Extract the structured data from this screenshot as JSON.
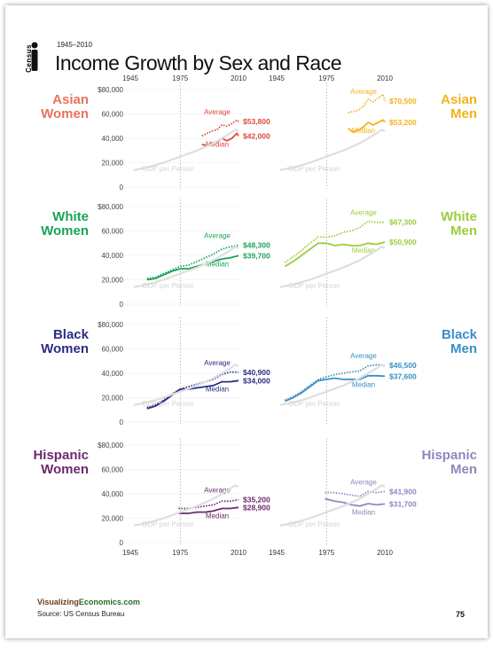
{
  "header": {
    "agency": "Census",
    "years": "1945–2010",
    "title": "Income Growth by Sex and Race"
  },
  "footer": {
    "brand_part1": "Visualizing",
    "brand_part2": "Economics.com",
    "source": "Source: US Census Bureau",
    "page_number": "75"
  },
  "colors": {
    "asian_women": "#e8735b",
    "asian_women_series": "#e0483a",
    "asian_men": "#f3b21a",
    "white_women": "#1aa358",
    "white_men": "#9ccc3c",
    "black_women": "#2b2e84",
    "black_men": "#3b8fc6",
    "hispanic_women": "#6c2a6e",
    "hispanic_men": "#8c88c0",
    "gdp": "#dedede"
  },
  "chart_data": [
    {
      "type": "line",
      "group": "Asian Women",
      "title_line1": "Asian",
      "title_line2": "Women",
      "color": "#e8735b",
      "series_color": "#e0483a",
      "ylim": [
        0,
        80000
      ],
      "x_ticks": [
        1945,
        1975,
        2010
      ],
      "y_ticks": [
        "0",
        "20,000",
        "40,000",
        "60,000",
        "$80,000"
      ],
      "show_y_axis": true,
      "series": [
        {
          "name": "Average",
          "label": "$53,800",
          "x": [
            1988,
            1991,
            1994,
            1997,
            2000,
            2003,
            2006,
            2009,
            2010
          ],
          "y": [
            42000,
            44000,
            46000,
            47000,
            51000,
            50000,
            52000,
            55000,
            53800
          ]
        },
        {
          "name": "Median",
          "label": "$42,000",
          "x": [
            1988,
            1991,
            1994,
            1997,
            2000,
            2003,
            2006,
            2009,
            2010
          ],
          "y": [
            35000,
            34000,
            36000,
            37000,
            40000,
            38000,
            40000,
            44000,
            42000
          ]
        },
        {
          "name": "GDP per Person",
          "label": "GDP per Person",
          "x": [
            1947,
            1955,
            1965,
            1975,
            1985,
            1995,
            2005,
            2008,
            2010
          ],
          "y": [
            14000,
            16000,
            20000,
            25000,
            30000,
            36000,
            44000,
            47000,
            46000
          ]
        }
      ]
    },
    {
      "type": "line",
      "group": "Asian Men",
      "title_line1": "Asian",
      "title_line2": "Men",
      "color": "#f3b21a",
      "series_color": "#f3b21a",
      "ylim": [
        0,
        80000
      ],
      "x_ticks": [
        1945,
        1975,
        2010
      ],
      "y_ticks": [],
      "show_y_axis": false,
      "series": [
        {
          "name": "Average",
          "label": "$70,500",
          "x": [
            1988,
            1991,
            1994,
            1997,
            2000,
            2003,
            2006,
            2009,
            2010
          ],
          "y": [
            61000,
            62000,
            63000,
            66000,
            72000,
            70000,
            73000,
            76000,
            70500
          ]
        },
        {
          "name": "Median",
          "label": "$53,200",
          "x": [
            1988,
            1991,
            1994,
            1997,
            2000,
            2003,
            2006,
            2009,
            2010
          ],
          "y": [
            48000,
            45000,
            47000,
            49000,
            53000,
            51000,
            53000,
            55000,
            53200
          ]
        },
        {
          "name": "GDP per Person",
          "label": "GDP per Person",
          "x": [
            1947,
            1955,
            1965,
            1975,
            1985,
            1995,
            2005,
            2008,
            2010
          ],
          "y": [
            14000,
            16000,
            20000,
            25000,
            30000,
            36000,
            44000,
            47000,
            46000
          ]
        }
      ]
    },
    {
      "type": "line",
      "group": "White Women",
      "title_line1": "White",
      "title_line2": "Women",
      "color": "#1aa358",
      "series_color": "#1aa358",
      "ylim": [
        0,
        80000
      ],
      "x_ticks": [
        1945,
        1975,
        2010
      ],
      "y_ticks": [
        "0",
        "20,000",
        "40,000",
        "60,000",
        "$80,000"
      ],
      "show_y_axis": true,
      "series": [
        {
          "name": "Average",
          "label": "$48,300",
          "x": [
            1955,
            1960,
            1965,
            1970,
            1975,
            1980,
            1985,
            1990,
            1995,
            2000,
            2005,
            2010
          ],
          "y": [
            21000,
            22000,
            25000,
            28000,
            31000,
            32000,
            35000,
            38000,
            41000,
            45000,
            47000,
            48300
          ]
        },
        {
          "name": "Median",
          "label": "$39,700",
          "x": [
            1955,
            1960,
            1965,
            1970,
            1975,
            1980,
            1985,
            1990,
            1995,
            2000,
            2005,
            2010
          ],
          "y": [
            20000,
            21000,
            24000,
            27000,
            29000,
            29000,
            31000,
            33000,
            35000,
            37000,
            38000,
            39700
          ]
        },
        {
          "name": "GDP per Person",
          "label": "GDP per Person",
          "x": [
            1947,
            1955,
            1965,
            1975,
            1985,
            1995,
            2005,
            2008,
            2010
          ],
          "y": [
            14000,
            16000,
            20000,
            25000,
            30000,
            36000,
            44000,
            47000,
            46000
          ]
        }
      ]
    },
    {
      "type": "line",
      "group": "White Men",
      "title_line1": "White",
      "title_line2": "Men",
      "color": "#9ccc3c",
      "series_color": "#9ccc3c",
      "ylim": [
        0,
        80000
      ],
      "x_ticks": [
        1945,
        1975,
        2010
      ],
      "y_ticks": [],
      "show_y_axis": false,
      "series": [
        {
          "name": "Average",
          "label": "$67,300",
          "x": [
            1950,
            1955,
            1960,
            1965,
            1970,
            1975,
            1980,
            1985,
            1990,
            1995,
            2000,
            2005,
            2010
          ],
          "y": [
            34000,
            39000,
            44000,
            50000,
            55000,
            55000,
            56000,
            59000,
            60000,
            63000,
            68000,
            67000,
            67300
          ]
        },
        {
          "name": "Median",
          "label": "$50,900",
          "x": [
            1950,
            1955,
            1960,
            1965,
            1970,
            1975,
            1980,
            1985,
            1990,
            1995,
            2000,
            2005,
            2010
          ],
          "y": [
            31000,
            35000,
            40000,
            45000,
            50000,
            50000,
            48000,
            49000,
            48000,
            48000,
            50000,
            49000,
            50900
          ]
        },
        {
          "name": "GDP per Person",
          "label": "GDP per Person",
          "x": [
            1947,
            1955,
            1965,
            1975,
            1985,
            1995,
            2005,
            2008,
            2010
          ],
          "y": [
            14000,
            16000,
            20000,
            25000,
            30000,
            36000,
            44000,
            47000,
            46000
          ]
        }
      ]
    },
    {
      "type": "line",
      "group": "Black Women",
      "title_line1": "Black",
      "title_line2": "Women",
      "color": "#2b2e84",
      "series_color": "#2b2e84",
      "ylim": [
        0,
        80000
      ],
      "x_ticks": [
        1945,
        1975,
        2010
      ],
      "y_ticks": [
        "0",
        "20,000",
        "40,000",
        "60,000",
        "$80,000"
      ],
      "show_y_axis": true,
      "series": [
        {
          "name": "Average",
          "label": "$40,900",
          "x": [
            1955,
            1960,
            1965,
            1970,
            1975,
            1980,
            1985,
            1990,
            1995,
            2000,
            2005,
            2010
          ],
          "y": [
            12000,
            14000,
            18000,
            23000,
            27000,
            29000,
            31000,
            33000,
            35000,
            39000,
            41000,
            40900
          ]
        },
        {
          "name": "Median",
          "label": "$34,000",
          "x": [
            1955,
            1960,
            1965,
            1970,
            1975,
            1980,
            1985,
            1990,
            1995,
            2000,
            2005,
            2010
          ],
          "y": [
            11000,
            13000,
            17000,
            22000,
            27000,
            27000,
            28000,
            29000,
            30000,
            33000,
            33000,
            34000
          ]
        },
        {
          "name": "GDP per Person",
          "label": "GDP per Person",
          "x": [
            1947,
            1955,
            1965,
            1975,
            1985,
            1995,
            2005,
            2008,
            2010
          ],
          "y": [
            14000,
            16000,
            20000,
            25000,
            30000,
            36000,
            44000,
            47000,
            46000
          ]
        }
      ]
    },
    {
      "type": "line",
      "group": "Black Men",
      "title_line1": "Black",
      "title_line2": "Men",
      "color": "#3b8fc6",
      "series_color": "#3b8fc6",
      "ylim": [
        0,
        80000
      ],
      "x_ticks": [
        1945,
        1975,
        2010
      ],
      "y_ticks": [],
      "show_y_axis": false,
      "series": [
        {
          "name": "Average",
          "label": "$46,500",
          "x": [
            1950,
            1955,
            1960,
            1965,
            1970,
            1975,
            1980,
            1985,
            1990,
            1995,
            2000,
            2005,
            2010
          ],
          "y": [
            18000,
            21000,
            25000,
            30000,
            35000,
            37000,
            39000,
            40000,
            41000,
            42000,
            46000,
            47000,
            46500
          ]
        },
        {
          "name": "Median",
          "label": "$37,600",
          "x": [
            1950,
            1955,
            1960,
            1965,
            1970,
            1975,
            1980,
            1985,
            1990,
            1995,
            2000,
            2005,
            2010
          ],
          "y": [
            17000,
            20000,
            24000,
            29000,
            34000,
            35000,
            36000,
            35000,
            35000,
            35000,
            38000,
            38000,
            37600
          ]
        },
        {
          "name": "GDP per Person",
          "label": "GDP per Person",
          "x": [
            1947,
            1955,
            1965,
            1975,
            1985,
            1995,
            2005,
            2008,
            2010
          ],
          "y": [
            14000,
            16000,
            20000,
            25000,
            30000,
            36000,
            44000,
            47000,
            46000
          ]
        }
      ]
    },
    {
      "type": "line",
      "group": "Hispanic Women",
      "title_line1": "Hispanic",
      "title_line2": "Women",
      "color": "#6c2a6e",
      "series_color": "#6c2a6e",
      "ylim": [
        0,
        80000
      ],
      "x_ticks": [
        1945,
        1975,
        2010
      ],
      "y_ticks": [
        "0",
        "20,000",
        "40,000",
        "60,000",
        "$80,000"
      ],
      "show_y_axis": true,
      "series": [
        {
          "name": "Average",
          "label": "$35,200",
          "x": [
            1974,
            1980,
            1985,
            1990,
            1995,
            2000,
            2005,
            2010
          ],
          "y": [
            28000,
            28000,
            29000,
            30000,
            31000,
            34000,
            34000,
            35200
          ]
        },
        {
          "name": "Median",
          "label": "$28,900",
          "x": [
            1974,
            1980,
            1985,
            1990,
            1995,
            2000,
            2005,
            2010
          ],
          "y": [
            24000,
            24000,
            25000,
            25000,
            26000,
            28000,
            28000,
            28900
          ]
        },
        {
          "name": "GDP per Person",
          "label": "GDP per Person",
          "x": [
            1947,
            1955,
            1965,
            1975,
            1985,
            1995,
            2005,
            2008,
            2010
          ],
          "y": [
            14000,
            16000,
            20000,
            25000,
            30000,
            36000,
            44000,
            47000,
            46000
          ]
        }
      ]
    },
    {
      "type": "line",
      "group": "Hispanic Men",
      "title_line1": "Hispanic",
      "title_line2": "Men",
      "color": "#8c88c0",
      "series_color": "#8c88c0",
      "ylim": [
        0,
        80000
      ],
      "x_ticks": [
        1945,
        1975,
        2010
      ],
      "y_ticks": [],
      "show_y_axis": false,
      "series": [
        {
          "name": "Average",
          "label": "$41,900",
          "x": [
            1974,
            1980,
            1985,
            1990,
            1995,
            2000,
            2005,
            2010
          ],
          "y": [
            41000,
            41000,
            40000,
            39000,
            38000,
            42000,
            41000,
            41900
          ]
        },
        {
          "name": "Median",
          "label": "$31,700",
          "x": [
            1974,
            1980,
            1985,
            1990,
            1995,
            2000,
            2005,
            2010
          ],
          "y": [
            36000,
            34000,
            33000,
            31000,
            30000,
            32000,
            31000,
            31700
          ]
        },
        {
          "name": "GDP per Person",
          "label": "GDP per Person",
          "x": [
            1947,
            1955,
            1965,
            1975,
            1985,
            1995,
            2005,
            2008,
            2010
          ],
          "y": [
            14000,
            16000,
            20000,
            25000,
            30000,
            36000,
            44000,
            47000,
            46000
          ]
        }
      ]
    }
  ]
}
